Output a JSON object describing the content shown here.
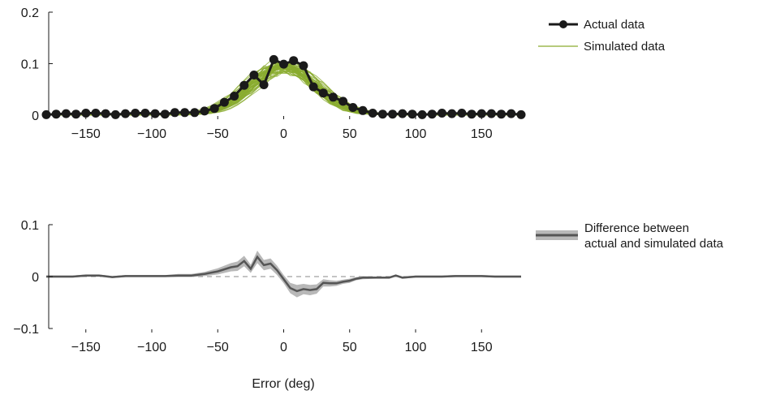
{
  "chart_data": [
    {
      "type": "line",
      "xlim": [
        -180,
        180
      ],
      "ylim": [
        0,
        0.2
      ],
      "yticks": [
        0,
        0.1,
        0.2
      ],
      "ytick_labels": [
        "0",
        "0.1",
        "0.2"
      ],
      "xticks": [
        -150,
        -100,
        -50,
        0,
        50,
        100,
        150
      ],
      "xtick_labels": [
        "−150",
        "−100",
        "−50",
        "0",
        "50",
        "100",
        "150"
      ],
      "legend_position": "top-right",
      "series": [
        {
          "name": "Actual data",
          "color": "#1a1a1a",
          "marker": "circle",
          "x": [
            -180,
            -172.5,
            -165,
            -157.5,
            -150,
            -142.5,
            -135,
            -127.5,
            -120,
            -112.5,
            -105,
            -97.5,
            -90,
            -82.5,
            -75,
            -67.5,
            -60,
            -52.5,
            -45,
            -37.5,
            -30,
            -22.5,
            -15,
            -7.5,
            0,
            7.5,
            15,
            22.5,
            30,
            37.5,
            45,
            52.5,
            60,
            67.5,
            75,
            82.5,
            90,
            97.5,
            105,
            112.5,
            120,
            127.5,
            135,
            142.5,
            150,
            157.5,
            165,
            172.5,
            180
          ],
          "y": [
            0.001,
            0.002,
            0.003,
            0.002,
            0.004,
            0.004,
            0.003,
            0.001,
            0.003,
            0.004,
            0.004,
            0.003,
            0.002,
            0.005,
            0.005,
            0.005,
            0.008,
            0.013,
            0.025,
            0.037,
            0.058,
            0.078,
            0.059,
            0.108,
            0.099,
            0.106,
            0.096,
            0.055,
            0.043,
            0.035,
            0.027,
            0.015,
            0.009,
            0.004,
            0.002,
            0.002,
            0.003,
            0.002,
            0.001,
            0.002,
            0.004,
            0.003,
            0.004,
            0.002,
            0.003,
            0.003,
            0.002,
            0.003,
            0.001
          ]
        },
        {
          "name": "Simulated data",
          "color": "#8aab2f",
          "center_deg": 0,
          "peak": 0.095,
          "width_deg": 25,
          "n_runs": 50
        }
      ]
    },
    {
      "type": "area",
      "xlim": [
        -180,
        180
      ],
      "ylim": [
        -0.1,
        0.1
      ],
      "yticks": [
        -0.1,
        0,
        0.1
      ],
      "ytick_labels": [
        "−0.1",
        "0",
        "0.1"
      ],
      "xticks": [
        -150,
        -100,
        -50,
        0,
        50,
        100,
        150
      ],
      "xtick_labels": [
        "−150",
        "−100",
        "−50",
        "0",
        "50",
        "100",
        "150"
      ],
      "xlabel": "Error (deg)",
      "legend_position": "right",
      "series": [
        {
          "name_lines": [
            "Difference between",
            "actual and simulated data"
          ],
          "color": "#555555",
          "band_color": "#b8b8b8",
          "x": [
            -180,
            -170,
            -160,
            -150,
            -140,
            -130,
            -120,
            -110,
            -100,
            -90,
            -80,
            -70,
            -60,
            -50,
            -40,
            -35,
            -30,
            -25,
            -20,
            -15,
            -10,
            -5,
            0,
            5,
            10,
            15,
            20,
            25,
            30,
            35,
            40,
            45,
            50,
            55,
            60,
            70,
            80,
            85,
            90,
            100,
            110,
            120,
            130,
            140,
            150,
            160,
            170,
            180
          ],
          "y": [
            0,
            0,
            0,
            0.002,
            0.002,
            -0.001,
            0.001,
            0.001,
            0.001,
            0.001,
            0.002,
            0.002,
            0.005,
            0.01,
            0.018,
            0.02,
            0.03,
            0.015,
            0.038,
            0.022,
            0.025,
            0.012,
            -0.005,
            -0.022,
            -0.028,
            -0.024,
            -0.026,
            -0.024,
            -0.012,
            -0.013,
            -0.013,
            -0.01,
            -0.008,
            -0.004,
            -0.002,
            -0.002,
            -0.002,
            0.002,
            -0.002,
            0,
            0,
            0,
            0.001,
            0.001,
            0.001,
            0,
            0,
            0
          ],
          "band": [
            0.002,
            0.002,
            0.002,
            0.002,
            0.002,
            0.002,
            0.002,
            0.002,
            0.002,
            0.002,
            0.003,
            0.003,
            0.004,
            0.006,
            0.008,
            0.009,
            0.01,
            0.008,
            0.012,
            0.01,
            0.01,
            0.009,
            0.008,
            0.01,
            0.012,
            0.01,
            0.01,
            0.009,
            0.007,
            0.006,
            0.005,
            0.004,
            0.004,
            0.003,
            0.003,
            0.002,
            0.002,
            0.002,
            0.002,
            0.002,
            0.002,
            0.002,
            0.002,
            0.002,
            0.002,
            0.002,
            0.002,
            0.002
          ]
        }
      ]
    }
  ]
}
